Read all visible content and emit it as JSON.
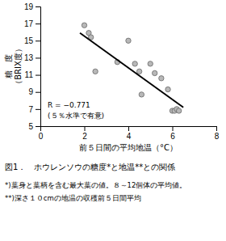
{
  "chart_data": {
    "type": "scatter",
    "title": "図1．　ホウレンソウの糖度*と地温**との関係",
    "footnotes": [
      "*)葉身と葉柄を含む最大葉の値。８～12個体の平均値。",
      "**)深さ１０cmの地温の収穫前５日間平均"
    ],
    "xlabel": "前５日間の平均地温（°C）",
    "ylabel": "糖　度\n（BRIX度）",
    "annotations": [
      "R  = −0.771",
      "(５％水準で有意)"
    ],
    "xlim": [
      0,
      8
    ],
    "ylim": [
      5,
      19
    ],
    "xticks": [
      0,
      2,
      4,
      6,
      8
    ],
    "yticks": [
      5,
      7,
      9,
      11,
      13,
      15,
      17,
      19
    ],
    "grid": false,
    "series": [
      {
        "type": "scatter",
        "marker": "circle",
        "color": "#b8b8b8",
        "x": [
          2.0,
          2.2,
          2.3,
          2.5,
          3.5,
          4.0,
          4.3,
          4.5,
          4.6,
          5.0,
          5.2,
          5.5,
          5.8,
          6.0,
          6.1,
          6.2,
          6.3
        ],
        "values": [
          16.8,
          15.9,
          15.4,
          11.4,
          12.5,
          15.0,
          12.3,
          11.4,
          8.7,
          12.3,
          11.2,
          10.6,
          9.3,
          6.8,
          6.8,
          7.0,
          6.8
        ]
      },
      {
        "type": "line",
        "line_style": "solid",
        "color": "#000000",
        "x": [
          1.8,
          6.5
        ],
        "values": [
          15.9,
          7.2
        ]
      }
    ]
  }
}
